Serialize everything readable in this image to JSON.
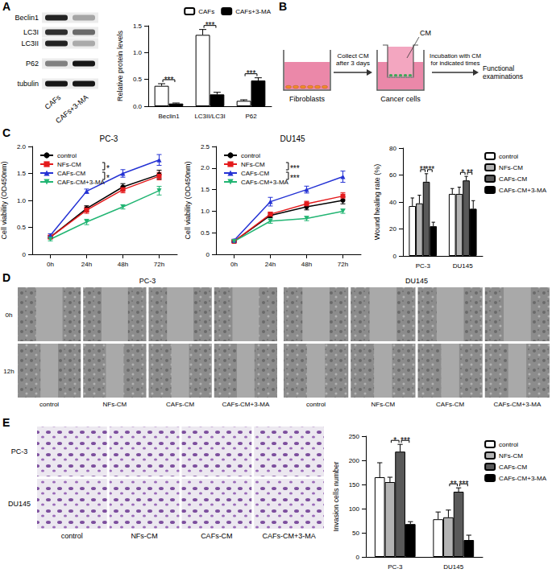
{
  "panel_labels": [
    "A",
    "B",
    "C",
    "D",
    "E"
  ],
  "blot": {
    "proteins": [
      "Beclin1",
      "LC3I",
      "LC3II",
      "P62",
      "tubulin"
    ],
    "lanes": [
      "CAFs",
      "CAFs+3-MA"
    ]
  },
  "schematic": {
    "well_1_label": "Fibroblasts",
    "step_1": [
      "Collect CM",
      "after 3 days"
    ],
    "medium_label": "CM",
    "well_2_label": "Cancer cells",
    "step_2": [
      "Incubation with CM",
      "for indicated times"
    ],
    "result": [
      "Functional",
      "examinations"
    ]
  },
  "chart_data": [
    {
      "type": "bar",
      "categories": [
        "Beclin1",
        "LC3II/LC3I",
        "P62"
      ],
      "y_label": "Relative protein levels",
      "ylim": [
        0,
        1.5
      ],
      "yticks": [
        {
          "value": 0,
          "label": "0.0"
        },
        0.5,
        {
          "value": 1,
          "label": "1.0"
        },
        1.5
      ],
      "legend": "top-right",
      "series": [
        {
          "name": "CAFs",
          "color": "#ffffff",
          "values": [
            0.38,
            1.33,
            0.1
          ],
          "errors": [
            0.04,
            0.1,
            0.02
          ]
        },
        {
          "name": "CAFs+3-MA",
          "color": "#000000",
          "values": [
            0.05,
            0.22,
            0.48
          ],
          "errors": [
            0.01,
            0.04,
            0.05
          ]
        }
      ],
      "annotations": [
        {
          "text": "***",
          "category": "Beclin1",
          "series": [
            "CAFs",
            "CAFs+3-MA"
          ]
        },
        {
          "text": "***",
          "category": "LC3II/LC3I",
          "series": [
            "CAFs",
            "CAFs+3-MA"
          ]
        },
        {
          "text": "***",
          "category": "P62",
          "series": [
            "CAFs",
            "CAFs+3-MA"
          ]
        }
      ]
    },
    {
      "type": "line",
      "title": "PC-3",
      "categories": [
        "0h",
        "24h",
        "48h",
        "72h"
      ],
      "y_label": "Cell viability (OD450nm)",
      "ylim": [
        0,
        2
      ],
      "yticks": [
        0,
        0.5,
        {
          "value": 1,
          "label": "1.0"
        },
        1.5,
        {
          "value": 2,
          "label": "2.0"
        }
      ],
      "legend": "top-left",
      "series": [
        {
          "name": "control",
          "color": "#000000",
          "marker": "circle",
          "values": [
            0.32,
            0.85,
            1.25,
            1.48
          ],
          "errors": [
            0.03,
            0.05,
            0.06,
            0.08
          ]
        },
        {
          "name": "NFs-CM",
          "color": "#e41a1c",
          "marker": "square",
          "values": [
            0.32,
            0.82,
            1.2,
            1.45
          ],
          "errors": [
            0.03,
            0.06,
            0.06,
            0.07
          ]
        },
        {
          "name": "CAFs-CM",
          "color": "#2432d4",
          "marker": "triangle",
          "values": [
            0.35,
            1.17,
            1.5,
            1.75
          ],
          "errors": [
            0.03,
            0.04,
            0.07,
            0.1
          ]
        },
        {
          "name": "CAFs-CM+3-MA",
          "color": "#22b573",
          "marker": "triangle_down",
          "values": [
            0.28,
            0.6,
            0.88,
            1.18
          ],
          "errors": [
            0.03,
            0.05,
            0.04,
            0.08
          ]
        }
      ],
      "annotations": [
        {
          "text": "*",
          "series": [
            "NFs-CM",
            "CAFs-CM"
          ]
        },
        {
          "text": "*",
          "series": [
            "CAFs-CM",
            "CAFs-CM+3-MA"
          ]
        }
      ]
    },
    {
      "type": "line",
      "title": "DU145",
      "categories": [
        "0h",
        "24h",
        "48h",
        "72h"
      ],
      "y_label": "Cell viability (OD450nm)",
      "ylim": [
        0,
        2.5
      ],
      "yticks": [
        0,
        0.5,
        {
          "value": 1,
          "label": "1.0"
        },
        1.5,
        {
          "value": 2,
          "label": "2.0"
        },
        2.5
      ],
      "legend": "top-left",
      "series": [
        {
          "name": "control",
          "color": "#000000",
          "marker": "circle",
          "values": [
            0.3,
            0.9,
            1.1,
            1.25
          ],
          "errors": [
            0.02,
            0.05,
            0.07,
            0.08
          ]
        },
        {
          "name": "NFs-CM",
          "color": "#e41a1c",
          "marker": "square",
          "values": [
            0.3,
            0.93,
            1.17,
            1.35
          ],
          "errors": [
            0.02,
            0.05,
            0.06,
            0.08
          ]
        },
        {
          "name": "CAFs-CM",
          "color": "#2432d4",
          "marker": "triangle",
          "values": [
            0.32,
            1.22,
            1.5,
            1.8
          ],
          "errors": [
            0.03,
            0.1,
            0.08,
            0.13
          ]
        },
        {
          "name": "CAFs-CM+3-MA",
          "color": "#22b573",
          "marker": "triangle_down",
          "values": [
            0.3,
            0.77,
            0.83,
            1.0
          ],
          "errors": [
            0.02,
            0.05,
            0.05,
            0.05
          ]
        }
      ],
      "annotations": [
        {
          "text": "***",
          "series": [
            "NFs-CM",
            "CAFs-CM"
          ]
        },
        {
          "text": "***",
          "series": [
            "CAFs-CM",
            "CAFs-CM+3-MA"
          ]
        }
      ]
    },
    {
      "type": "bar",
      "categories": [
        "PC-3",
        "DU145"
      ],
      "y_label": "Wound healing rate (%)",
      "ylim": [
        0,
        80
      ],
      "yticks": [
        0,
        20,
        40,
        60,
        80
      ],
      "legend": "right",
      "series": [
        {
          "name": "control",
          "color": "#ffffff",
          "values": [
            37,
            46
          ],
          "errors": [
            6,
            4
          ]
        },
        {
          "name": "NFs-CM",
          "color": "#b3b3b3",
          "values": [
            39,
            46
          ],
          "errors": [
            6,
            5
          ]
        },
        {
          "name": "CAFs-CM",
          "color": "#595959",
          "values": [
            55,
            56
          ],
          "errors": [
            6,
            3
          ]
        },
        {
          "name": "CAFs-CM+3-MA",
          "color": "#000000",
          "values": [
            22,
            35
          ],
          "errors": [
            3,
            6
          ]
        }
      ],
      "annotations": [
        {
          "text": "**",
          "category": "PC-3",
          "series": [
            "NFs-CM",
            "CAFs-CM"
          ]
        },
        {
          "text": "***",
          "category": "PC-3",
          "series": [
            "CAFs-CM",
            "CAFs-CM+3-MA"
          ]
        },
        {
          "text": "*",
          "category": "DU145",
          "series": [
            "NFs-CM",
            "CAFs-CM"
          ]
        },
        {
          "text": "**",
          "category": "DU145",
          "series": [
            "CAFs-CM",
            "CAFs-CM+3-MA"
          ]
        }
      ]
    },
    {
      "type": "bar",
      "categories": [
        "PC-3",
        "DU145"
      ],
      "y_label": "Invasion cells number",
      "ylim": [
        0,
        250
      ],
      "yticks": [
        0,
        50,
        100,
        150,
        200,
        250
      ],
      "legend": "right",
      "series": [
        {
          "name": "control",
          "color": "#ffffff",
          "values": [
            165,
            78
          ],
          "errors": [
            30,
            15
          ]
        },
        {
          "name": "NFs-CM",
          "color": "#b3b3b3",
          "values": [
            155,
            82
          ],
          "errors": [
            10,
            15
          ]
        },
        {
          "name": "CAFs-CM",
          "color": "#595959",
          "values": [
            218,
            135
          ],
          "errors": [
            15,
            8
          ]
        },
        {
          "name": "CAFs-CM+3-MA",
          "color": "#000000",
          "values": [
            68,
            35
          ],
          "errors": [
            5,
            10
          ]
        }
      ],
      "annotations": [
        {
          "text": "*",
          "category": "PC-3",
          "series": [
            "NFs-CM",
            "CAFs-CM"
          ]
        },
        {
          "text": "***",
          "category": "PC-3",
          "series": [
            "CAFs-CM",
            "CAFs-CM+3-MA"
          ]
        },
        {
          "text": "**",
          "category": "DU145",
          "series": [
            "NFs-CM",
            "CAFs-CM"
          ]
        },
        {
          "text": "***",
          "category": "DU145",
          "series": [
            "CAFs-CM",
            "CAFs-CM+3-MA"
          ]
        }
      ]
    }
  ],
  "wound_images": {
    "cell_lines": [
      "PC-3",
      "DU145"
    ],
    "times": [
      "0h",
      "12h"
    ],
    "conditions": [
      "control",
      "NFs-CM",
      "CAFs-CM",
      "CAFs-CM+3-MA"
    ]
  },
  "invasion_images": {
    "cell_lines": [
      "PC-3",
      "DU145"
    ],
    "conditions": [
      "control",
      "NFs-CM",
      "CAFs-CM",
      "CAFs-CM+3-MA"
    ]
  }
}
